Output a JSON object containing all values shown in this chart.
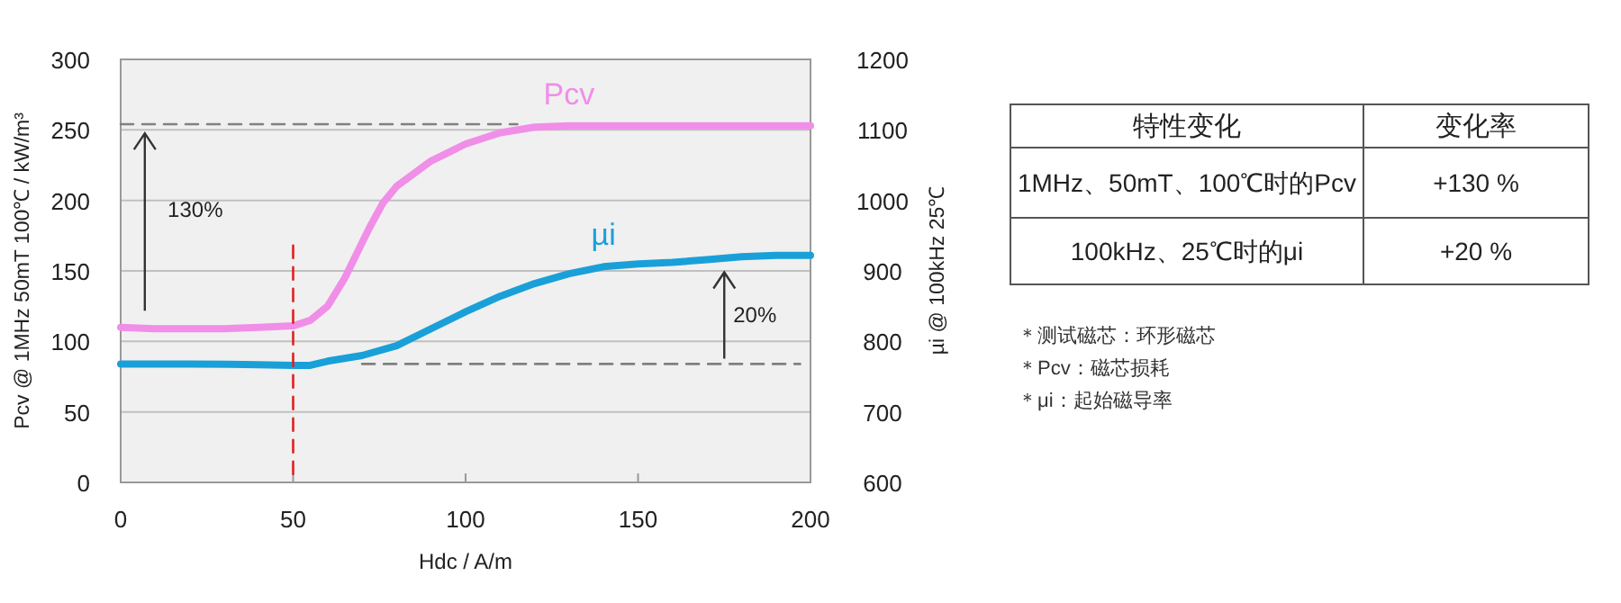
{
  "chart_data": [
    {
      "type": "line",
      "xlabel": "Hdc / A/m",
      "ylabel": "Pcv @ 1MHz 50mT 100℃ / kW/m³",
      "y2label": "µi @ 100kHz 25℃",
      "xlim": [
        0,
        200
      ],
      "xticks": [
        0,
        50,
        100,
        150,
        200
      ],
      "ylim": [
        0,
        300
      ],
      "yticks": [
        0,
        50,
        100,
        150,
        200,
        250,
        300
      ],
      "y2lim": [
        600,
        1200
      ],
      "y2ticks": [
        600,
        700,
        800,
        900,
        1000,
        1100,
        1200
      ],
      "grid": "y",
      "series": [
        {
          "name": "Pcv",
          "color": "#f08ee8",
          "x": [
            0,
            10,
            20,
            30,
            40,
            50,
            55,
            60,
            65,
            68,
            72,
            76,
            80,
            90,
            100,
            110,
            120,
            130,
            150,
            200
          ],
          "values": [
            110,
            109,
            109,
            109,
            110,
            111,
            115,
            125,
            145,
            160,
            180,
            198,
            210,
            228,
            240,
            248,
            252,
            253,
            253,
            253
          ]
        },
        {
          "name": "µi",
          "axis": "y2",
          "color": "#1aa0d8",
          "x": [
            0,
            20,
            40,
            50,
            55,
            60,
            70,
            80,
            90,
            100,
            110,
            120,
            130,
            140,
            150,
            160,
            170,
            180,
            190,
            200
          ],
          "values": [
            768,
            768,
            767,
            766,
            766,
            772,
            780,
            794,
            818,
            842,
            864,
            882,
            896,
            906,
            910,
            912,
            916,
            920,
            922,
            922
          ]
        },
        {
          "color": "#808080",
          "line_style": "dashed",
          "x": [
            0,
            115
          ],
          "values": [
            254,
            254
          ]
        },
        {
          "color": "#808080",
          "line_style": "dashed",
          "axis": "y2",
          "x": [
            70,
            197
          ],
          "values": [
            768,
            768
          ]
        },
        {
          "color": "#e02020",
          "line_style": "dashed",
          "x": [
            50,
            50
          ],
          "values": [
            168,
            0
          ]
        }
      ],
      "annotations": [
        "130%",
        "20%"
      ]
    },
    {
      "type": "other",
      "annotations": [
        "特性变化",
        "变化率",
        "1MHz、50mT、100℃时的Pcv",
        "+130 %",
        "100kHz、25℃时的μi",
        "+20 %",
        "＊测试磁芯：环形磁芯",
        "＊Pcv：磁芯损耗",
        "＊μi：起始磁导率"
      ]
    }
  ]
}
